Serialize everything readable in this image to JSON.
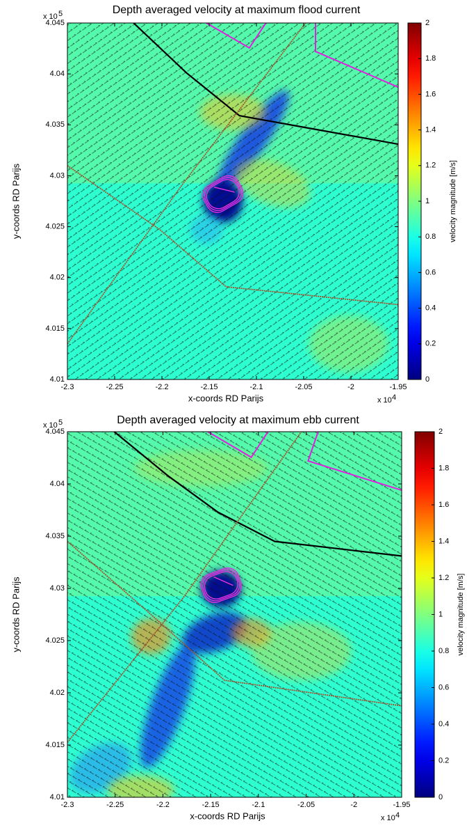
{
  "chart_data": [
    {
      "type": "heatmap",
      "title": "Depth averaged velocity at maximum flood current",
      "xlabel": "x-coords RD Parijs",
      "ylabel": "y-coords RD Parijs",
      "colorbar_label": "velocity magnitude [m/s]",
      "x_exponent": {
        "text": "x 10",
        "power": "4"
      },
      "y_exponent": {
        "text": "x 10",
        "power": "5"
      },
      "xlim": [
        -2.3,
        -1.95
      ],
      "xticks": [
        -2.3,
        -2.25,
        -2.2,
        -2.15,
        -2.1,
        -2.05,
        -2,
        -1.95
      ],
      "ylim": [
        4.01,
        4.045
      ],
      "yticks": [
        4.01,
        4.015,
        4.02,
        4.025,
        4.03,
        4.035,
        4.04,
        4.045
      ],
      "clim": [
        0,
        2
      ],
      "cticks": [
        0,
        0.2,
        0.4,
        0.6,
        0.8,
        1,
        1.2,
        1.4,
        1.6,
        1.8,
        2
      ],
      "colormap": "jet"
    },
    {
      "type": "heatmap",
      "title": "Depth averaged velocity at maximum ebb current",
      "xlabel": "x-coords RD Parijs",
      "ylabel": "y-coords RD Parijs",
      "colorbar_label": "velocity magnitude [m/s]",
      "x_exponent": {
        "text": "x 10",
        "power": "4"
      },
      "y_exponent": {
        "text": "x 10",
        "power": "5"
      },
      "xlim": [
        -2.3,
        -1.95
      ],
      "xticks": [
        -2.3,
        -2.25,
        -2.2,
        -2.15,
        -2.1,
        -2.05,
        -2,
        -1.95
      ],
      "ylim": [
        4.01,
        4.045
      ],
      "yticks": [
        4.01,
        4.015,
        4.02,
        4.025,
        4.03,
        4.035,
        4.04,
        4.045
      ],
      "clim": [
        0,
        2
      ],
      "cticks": [
        0,
        0.2,
        0.4,
        0.6,
        0.8,
        1,
        1.2,
        1.4,
        1.6,
        1.8,
        2
      ],
      "colormap": "jet"
    }
  ]
}
